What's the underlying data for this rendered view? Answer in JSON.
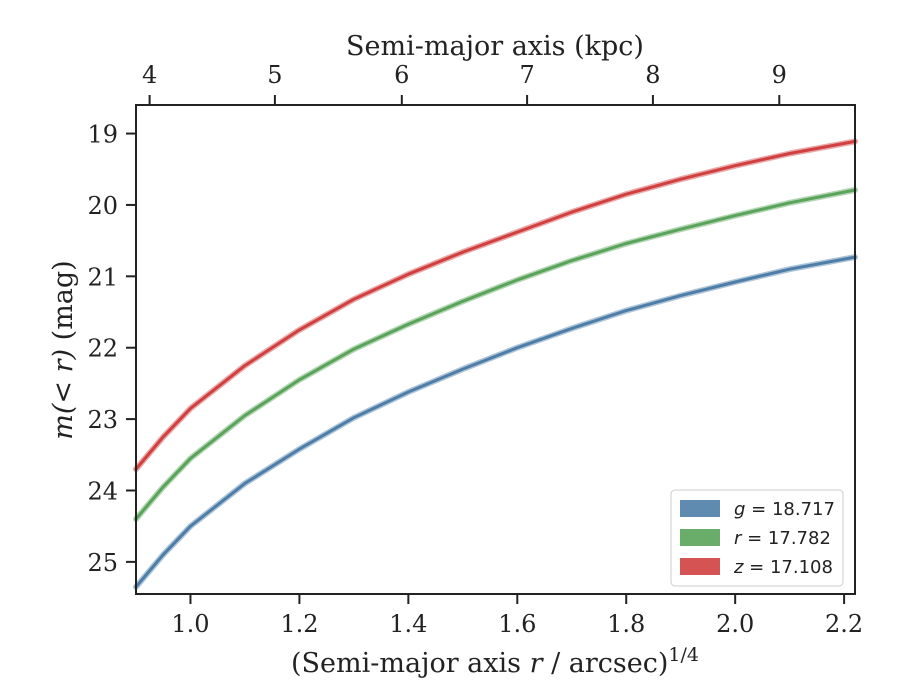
{
  "chart_data": {
    "type": "line",
    "title": "",
    "xlabel_prefix": "(Semi-major axis ",
    "xlabel_var": "r",
    "xlabel_suffix": " / arcsec)",
    "xlabel_sup": "1/4",
    "top_xlabel": "Semi-major axis (kpc)",
    "ylabel_var": "m",
    "ylabel_arg": "(< r)",
    "ylabel_unit": " (mag)",
    "xlim": [
      0.9,
      2.22
    ],
    "ylim": [
      25.45,
      18.6
    ],
    "y_inverted": true,
    "xticks": [
      1.0,
      1.2,
      1.4,
      1.6,
      1.8,
      2.0,
      2.2
    ],
    "xtick_labels": [
      "1.0",
      "1.2",
      "1.4",
      "1.6",
      "1.8",
      "2.0",
      "2.2"
    ],
    "yticks": [
      19,
      20,
      21,
      22,
      23,
      24,
      25
    ],
    "ytick_labels": [
      "19",
      "20",
      "21",
      "22",
      "23",
      "24",
      "25"
    ],
    "top_ticks_x": [
      0.925,
      1.155,
      1.388,
      1.618,
      1.849,
      2.081
    ],
    "top_tick_labels": [
      "4",
      "5",
      "6",
      "7",
      "8",
      "9"
    ],
    "grid": false,
    "legend_position": "bottom-right",
    "series": [
      {
        "name": "g = 18.717",
        "legend_var": "g",
        "legend_value": "18.717",
        "color": "#4e7ea8",
        "x": [
          0.9,
          0.95,
          1.0,
          1.1,
          1.2,
          1.3,
          1.4,
          1.5,
          1.6,
          1.7,
          1.8,
          1.9,
          2.0,
          2.1,
          2.22
        ],
        "y": [
          25.35,
          24.9,
          24.5,
          23.9,
          23.42,
          22.98,
          22.62,
          22.3,
          22.0,
          21.73,
          21.48,
          21.27,
          21.08,
          20.9,
          20.73
        ]
      },
      {
        "name": "r = 17.782",
        "legend_var": "r",
        "legend_value": "17.782",
        "color": "#5aa35a",
        "x": [
          0.9,
          0.95,
          1.0,
          1.1,
          1.2,
          1.3,
          1.4,
          1.5,
          1.6,
          1.7,
          1.8,
          1.9,
          2.0,
          2.1,
          2.22
        ],
        "y": [
          24.4,
          23.95,
          23.55,
          22.95,
          22.45,
          22.02,
          21.67,
          21.35,
          21.05,
          20.78,
          20.54,
          20.34,
          20.15,
          19.97,
          19.79
        ]
      },
      {
        "name": "z = 17.108",
        "legend_var": "z",
        "legend_value": "17.108",
        "color": "#d04040",
        "x": [
          0.9,
          0.95,
          1.0,
          1.1,
          1.2,
          1.3,
          1.4,
          1.5,
          1.6,
          1.7,
          1.8,
          1.9,
          2.0,
          2.1,
          2.22
        ],
        "y": [
          23.7,
          23.25,
          22.85,
          22.25,
          21.75,
          21.32,
          20.97,
          20.66,
          20.38,
          20.1,
          19.85,
          19.64,
          19.45,
          19.28,
          19.11
        ]
      }
    ]
  }
}
